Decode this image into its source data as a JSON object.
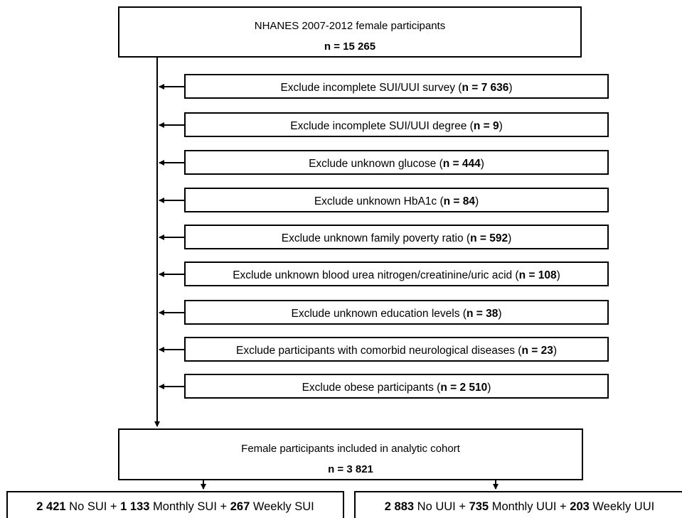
{
  "top": {
    "title": "NHANES 2007-2012 female participants",
    "n": "n = 15 265"
  },
  "exclusions": [
    {
      "prefix": "Exclude incomplete SUI/UUI survey (",
      "n": "n = 7 636",
      "suffix": ")"
    },
    {
      "prefix": "Exclude incomplete SUI/UUI degree (",
      "n": "n = 9",
      "suffix": ")"
    },
    {
      "prefix": "Exclude unknown glucose (",
      "n": "n = 444",
      "suffix": ")"
    },
    {
      "prefix": "Exclude unknown HbA1c (",
      "n": "n = 84",
      "suffix": ")"
    },
    {
      "prefix": "Exclude unknown family poverty ratio (",
      "n": "n = 592",
      "suffix": ")"
    },
    {
      "prefix": "Exclude unknown blood urea nitrogen/creatinine/uric acid (",
      "n": "n = 108",
      "suffix": ")"
    },
    {
      "prefix": "Exclude unknown education levels (",
      "n": "n = 38",
      "suffix": ")"
    },
    {
      "prefix": "Exclude participants with comorbid neurological diseases (",
      "n": "n = 23",
      "suffix": ")"
    },
    {
      "prefix": "Exclude obese participants (",
      "n": "n = 2 510",
      "suffix": ")"
    }
  ],
  "cohort": {
    "title": "Female participants included in analytic cohort",
    "n": "n = 3 821"
  },
  "sui": {
    "no_count": "2 421",
    "no_label": " No SUI + ",
    "monthly_count": "1 133",
    "monthly_label": " Monthly SUI + ",
    "weekly_count": "267",
    "weekly_label": " Weekly SUI"
  },
  "uui": {
    "no_count": "2 883",
    "no_label": " No UUI + ",
    "monthly_count": "735",
    "monthly_label": " Monthly UUI + ",
    "weekly_count": "203",
    "weekly_label": " Weekly UUI"
  }
}
